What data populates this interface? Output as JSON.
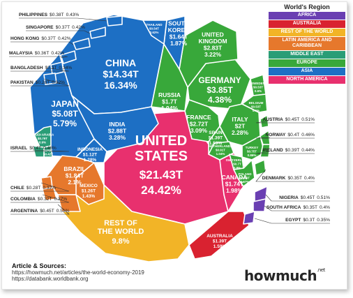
{
  "chart_data": {
    "type": "voronoi-treemap",
    "unit": "GDP (US$ trillions)",
    "legend_title": "World's Region",
    "regions": [
      {
        "name": "AFRICA",
        "color": "#6a3fb2"
      },
      {
        "name": "AUSTRALIA",
        "color": "#d92230"
      },
      {
        "name": "REST OF THE WORLD",
        "color": "#f2b427"
      },
      {
        "name": "LATIN AMERICA AND CARIBBEAN",
        "color": "#e6782c"
      },
      {
        "name": "MIDDLE EAST",
        "color": "#2a9d76"
      },
      {
        "name": "EUROPE",
        "color": "#38a83a"
      },
      {
        "name": "ASIA",
        "color": "#1d6fc4"
      },
      {
        "name": "NORTH AMERICA",
        "color": "#e8306e"
      }
    ],
    "countries": [
      {
        "name": "UNITED STATES",
        "region": "NORTH AMERICA",
        "value_t": 21.43,
        "label": "$21.43T",
        "share": "24.42%"
      },
      {
        "name": "CHINA",
        "region": "ASIA",
        "value_t": 14.34,
        "label": "$14.34T",
        "share": "16.34%"
      },
      {
        "name": "REST OF THE WORLD",
        "region": "REST OF THE WORLD",
        "value_t": null,
        "label": "",
        "share": "9.8%"
      },
      {
        "name": "JAPAN",
        "region": "ASIA",
        "value_t": 5.08,
        "label": "$5.08T",
        "share": "5.79%"
      },
      {
        "name": "GERMANY",
        "region": "EUROPE",
        "value_t": 3.85,
        "label": "$3.85T",
        "share": "4.38%"
      },
      {
        "name": "INDIA",
        "region": "ASIA",
        "value_t": 2.88,
        "label": "$2.88T",
        "share": "3.28%"
      },
      {
        "name": "UNITED KINGDOM",
        "region": "EUROPE",
        "value_t": 2.83,
        "label": "$2.83T",
        "share": "3.22%"
      },
      {
        "name": "FRANCE",
        "region": "EUROPE",
        "value_t": 2.72,
        "label": "$2.72T",
        "share": "3.09%"
      },
      {
        "name": "ITALY",
        "region": "EUROPE",
        "value_t": 2.0,
        "label": "$2T",
        "share": "2.28%"
      },
      {
        "name": "BRAZIL",
        "region": "LATIN AMERICA AND CARIBBEAN",
        "value_t": 1.84,
        "label": "$1.84T",
        "share": "2.1%"
      },
      {
        "name": "CANADA",
        "region": "NORTH AMERICA",
        "value_t": 1.74,
        "label": "$1.74T",
        "share": "1.98%"
      },
      {
        "name": "RUSSIA",
        "region": "EUROPE",
        "value_t": 1.7,
        "label": "$1.7T",
        "share": "1.94%"
      },
      {
        "name": "SOUTH KOREA",
        "region": "ASIA",
        "value_t": 1.64,
        "label": "$1.64T",
        "share": "1.87%"
      },
      {
        "name": "AUSTRALIA",
        "region": "AUSTRALIA",
        "value_t": 1.39,
        "label": "$1.39T",
        "share": "1.59%"
      },
      {
        "name": "SPAIN",
        "region": "EUROPE",
        "value_t": 1.39,
        "label": "$1.39T",
        "share": "1.59%"
      },
      {
        "name": "MEXICO",
        "region": "LATIN AMERICA AND CARIBBEAN",
        "value_t": 1.26,
        "label": "$1.26T",
        "share": "1.43%"
      },
      {
        "name": "INDONESIA",
        "region": "ASIA",
        "value_t": 1.12,
        "label": "$1.12T",
        "share": "1.28%"
      },
      {
        "name": "NETHERLANDS",
        "region": "EUROPE",
        "value_t": 0.91,
        "label": "$0.91T",
        "share": "1.04%"
      },
      {
        "name": "SAUDI ARABIA",
        "region": "MIDDLE EAST",
        "value_t": 0.79,
        "label": "$0.79T",
        "share": "0.9%"
      },
      {
        "name": "TURKEY",
        "region": "EUROPE",
        "value_t": 0.75,
        "label": "$0.75T",
        "share": "0.86%"
      },
      {
        "name": "SWITZERLAND",
        "region": "EUROPE",
        "value_t": 0.7,
        "label": "$0.7T",
        "share": "0.8%"
      },
      {
        "name": "POLAND",
        "region": "EUROPE",
        "value_t": 0.59,
        "label": "$0.59T",
        "share": "0.67%"
      },
      {
        "name": "THAILAND",
        "region": "ASIA",
        "value_t": 0.54,
        "label": "$0.54T",
        "share": "0.62%"
      },
      {
        "name": "SWEDEN",
        "region": "EUROPE",
        "value_t": 0.53,
        "label": "$0.53T",
        "share": "0.6%"
      },
      {
        "name": "BELGIUM",
        "region": "EUROPE",
        "value_t": 0.53,
        "label": "$0.53T",
        "share": "0.6%"
      },
      {
        "name": "UAE",
        "region": "MIDDLE EAST",
        "value_t": 0.42,
        "label": "$0.42T",
        "share": "0.48%"
      },
      {
        "name": "NIGERIA",
        "region": "AFRICA",
        "value_t": 0.45,
        "label": "$0.45T",
        "share": "0.51%"
      },
      {
        "name": "ARGENTINA",
        "region": "LATIN AMERICA AND CARIBBEAN",
        "value_t": 0.45,
        "label": "$0.45T",
        "share": "0.51%"
      },
      {
        "name": "AUSTRIA",
        "region": "EUROPE",
        "value_t": 0.45,
        "label": "$0.45T",
        "share": "0.51%"
      },
      {
        "name": "NORWAY",
        "region": "EUROPE",
        "value_t": 0.4,
        "label": "$0.4T",
        "share": "0.46%"
      },
      {
        "name": "IRELAND",
        "region": "EUROPE",
        "value_t": 0.39,
        "label": "$0.39T",
        "share": "0.44%"
      },
      {
        "name": "ISRAEL",
        "region": "MIDDLE EAST",
        "value_t": 0.4,
        "label": "$0.4T",
        "share": "0.46%"
      },
      {
        "name": "PHILIPPINES",
        "region": "ASIA",
        "value_t": 0.38,
        "label": "$0.38T",
        "share": "0.43%"
      },
      {
        "name": "SINGAPORE",
        "region": "ASIA",
        "value_t": 0.37,
        "label": "$0.37T",
        "share": "0.42%"
      },
      {
        "name": "HONG KONG",
        "region": "ASIA",
        "value_t": 0.37,
        "label": "$0.37T",
        "share": "0.42%"
      },
      {
        "name": "MALAYSIA",
        "region": "ASIA",
        "value_t": 0.36,
        "label": "$0.36T",
        "share": "0.42%"
      },
      {
        "name": "SOUTH AFRICA",
        "region": "AFRICA",
        "value_t": 0.35,
        "label": "$0.35T",
        "share": "0.4%"
      },
      {
        "name": "DENMARK",
        "region": "EUROPE",
        "value_t": 0.35,
        "label": "$0.35T",
        "share": "0.4%"
      },
      {
        "name": "BANGLADESH",
        "region": "ASIA",
        "value_t": 0.3,
        "label": "$0.3T",
        "share": "0.34%"
      },
      {
        "name": "EGYPT",
        "region": "AFRICA",
        "value_t": 0.3,
        "label": "$0.3T",
        "share": "0.35%"
      },
      {
        "name": "CHILE",
        "region": "LATIN AMERICA AND CARIBBEAN",
        "value_t": 0.28,
        "label": "$0.28T",
        "share": "0.32%"
      },
      {
        "name": "PAKISTAN",
        "region": "ASIA",
        "value_t": 0.28,
        "label": "$0.28T",
        "share": "0.32%"
      },
      {
        "name": "COLOMBIA",
        "region": "LATIN AMERICA AND CARIBBEAN",
        "value_t": 0.32,
        "label": "$0.32T",
        "share": "0.37%"
      }
    ]
  },
  "sources": {
    "title": "Article & Sources:",
    "lines": [
      "https://howmuch.net/articles/the-world-economy-2019",
      "https://databank.worldbank.org"
    ]
  },
  "brand": {
    "name": "howmuch",
    "suffix": ".net"
  }
}
